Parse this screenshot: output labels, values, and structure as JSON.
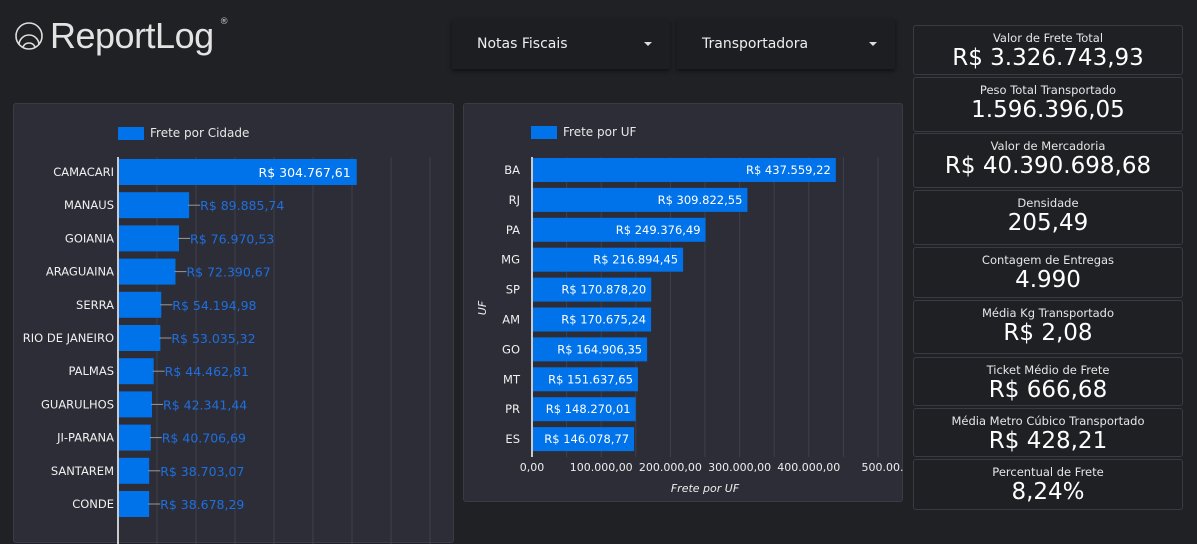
{
  "header": {
    "logo_text": "ReportLog",
    "logo_reg": "®"
  },
  "filters": [
    {
      "label": "Notas Fiscais"
    },
    {
      "label": "Transportadora"
    }
  ],
  "kpis": [
    {
      "title": "Valor de Frete Total",
      "value": "R$ 3.326.743,93"
    },
    {
      "title": "Peso Total Transportado",
      "value": "1.596.396,05"
    },
    {
      "title": "Valor de Mercadoria",
      "value": "R$ 40.390.698,68"
    },
    {
      "title": "Densidade",
      "value": "205,49"
    },
    {
      "title": "Contagem de Entregas",
      "value": "4.990"
    },
    {
      "title": "Média Kg Transportado",
      "value": "R$ 2,08"
    },
    {
      "title": "Ticket Médio de Frete",
      "value": "R$ 666,68"
    },
    {
      "title": "Média Metro Cúbico Transportado",
      "value": "R$ 428,21"
    },
    {
      "title": "Percentual de Frete",
      "value": "8,24%"
    }
  ],
  "colors": {
    "bar": "#0073ea",
    "background": "#202125",
    "panel": "#2c2d36"
  },
  "chart_data": [
    {
      "type": "bar",
      "orientation": "horizontal",
      "legend": "Frete por Cidade",
      "xlim": [
        0,
        400000
      ],
      "grid": true,
      "categories": [
        "CAMACARI",
        "MANAUS",
        "GOIANIA",
        "ARAGUAINA",
        "SERRA",
        "RIO DE JANEIRO",
        "PALMAS",
        "GUARULHOS",
        "JI-PARANA",
        "SANTAREM",
        "CONDE"
      ],
      "values": [
        304767.61,
        89885.74,
        76970.53,
        72390.67,
        54194.98,
        53035.32,
        44462.81,
        42341.44,
        40706.69,
        38703.07,
        38678.29
      ],
      "labels": [
        "R$ 304.767,61",
        "R$ 89.885,74",
        "R$ 76.970,53",
        "R$ 72.390,67",
        "R$ 54.194,98",
        "R$ 53.035,32",
        "R$ 44.462,81",
        "R$ 42.341,44",
        "R$ 40.706,69",
        "R$ 38.703,07",
        "R$ 38.678,29"
      ]
    },
    {
      "type": "bar",
      "orientation": "horizontal",
      "legend": "Frete por UF",
      "xlabel": "Frete por UF",
      "ylabel": "UF",
      "xlim": [
        0,
        500000
      ],
      "grid": true,
      "xticks": [
        "0,00",
        "100.000,00",
        "200.000,00",
        "300.000,00",
        "400.000,00",
        "500.00..."
      ],
      "categories": [
        "BA",
        "RJ",
        "PA",
        "MG",
        "SP",
        "AM",
        "GO",
        "MT",
        "PR",
        "ES"
      ],
      "values": [
        437559.22,
        309822.55,
        249376.49,
        216894.45,
        170878.2,
        170675.24,
        164906.35,
        151637.65,
        148270.01,
        146078.77
      ],
      "labels": [
        "R$ 437.559,22",
        "R$ 309.822,55",
        "R$ 249.376,49",
        "R$ 216.894,45",
        "R$ 170.878,20",
        "R$ 170.675,24",
        "R$ 164.906,35",
        "R$ 151.637,65",
        "R$ 148.270,01",
        "R$ 146.078,77"
      ]
    }
  ]
}
